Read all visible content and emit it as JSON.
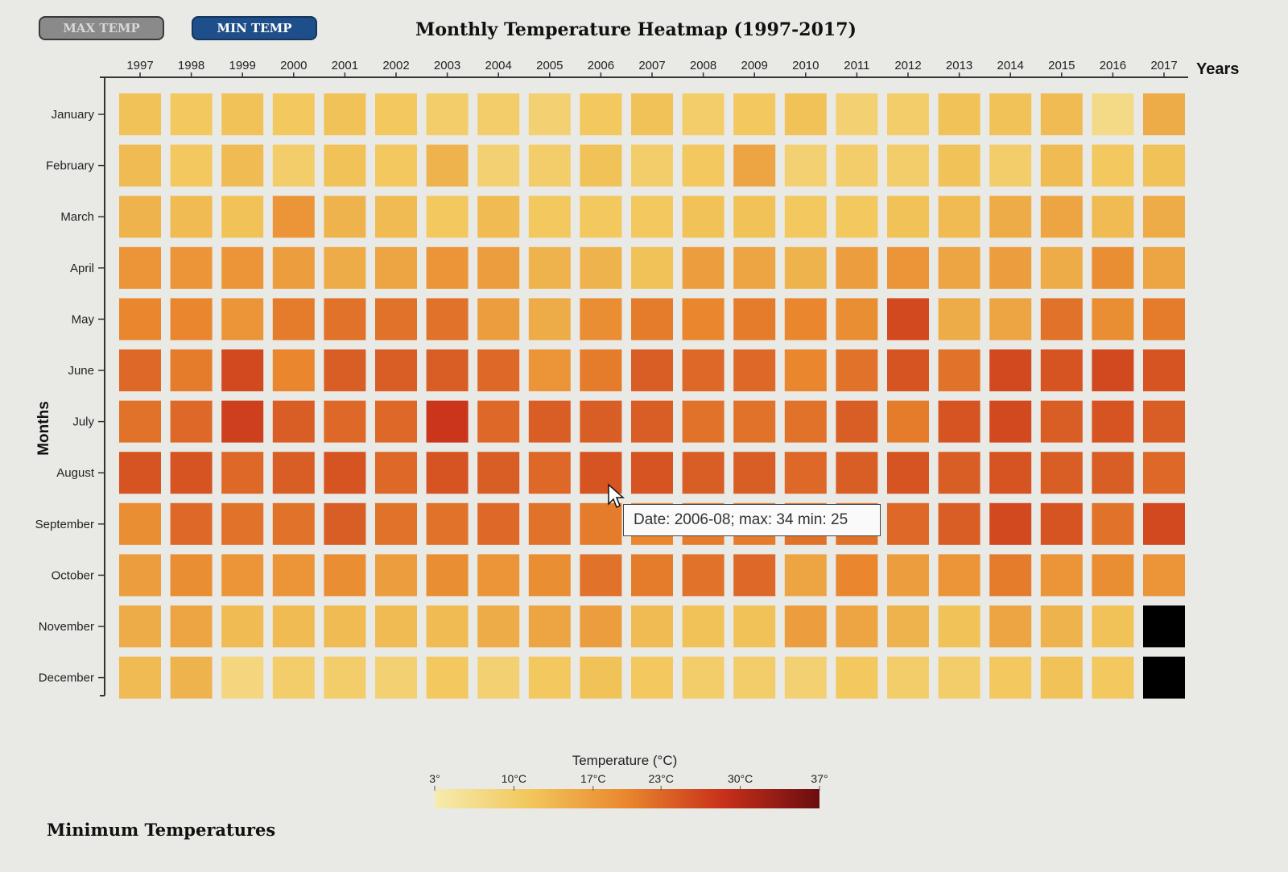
{
  "buttons": {
    "max_label": "MAX TEMP",
    "min_label": "MIN TEMP",
    "active": "min"
  },
  "title": "Monthly Temperature Heatmap (1997-2017)",
  "bottom_caption": "Minimum Temperatures",
  "tooltip": "Date: 2006-08; max: 34 min: 25",
  "colors": {
    "scale_low": "#f3e3a1",
    "scale_mid": "#e07a28",
    "scale_high": "#6e0f10",
    "missing": "#000000",
    "background": "#e9e9e6",
    "button_active": "#1f4f8a"
  },
  "chart_data": {
    "type": "heatmap",
    "title": "Monthly Temperature Heatmap (1997-2017)",
    "xlabel": "Years",
    "ylabel": "Months",
    "x": [
      "1997",
      "1998",
      "1999",
      "2000",
      "2001",
      "2002",
      "2003",
      "2004",
      "2005",
      "2006",
      "2007",
      "2008",
      "2009",
      "2010",
      "2011",
      "2012",
      "2013",
      "2014",
      "2015",
      "2016",
      "2017"
    ],
    "y": [
      "January",
      "February",
      "March",
      "April",
      "May",
      "June",
      "July",
      "August",
      "September",
      "October",
      "November",
      "December"
    ],
    "legend": {
      "title": "Temperature (°C)",
      "ticks": [
        "3°",
        "10°C",
        "17°C",
        "23°C",
        "30°C",
        "37°"
      ],
      "tick_values": [
        3,
        10,
        17,
        23,
        30,
        37
      ],
      "range": [
        3,
        37
      ]
    },
    "values_celsius": [
      [
        12,
        11,
        12,
        11,
        12,
        11,
        10,
        10,
        9,
        11,
        12,
        10,
        11,
        12,
        9,
        10,
        12,
        12,
        13,
        7,
        15
      ],
      [
        13,
        11,
        13,
        10,
        12,
        11,
        14,
        9,
        10,
        12,
        10,
        11,
        16,
        9,
        10,
        10,
        12,
        10,
        13,
        11,
        12
      ],
      [
        14,
        13,
        12,
        18,
        14,
        13,
        11,
        13,
        11,
        11,
        11,
        12,
        12,
        11,
        11,
        12,
        13,
        15,
        16,
        13,
        15
      ],
      [
        18,
        18,
        18,
        17,
        15,
        16,
        18,
        17,
        14,
        14,
        12,
        17,
        16,
        14,
        17,
        18,
        16,
        17,
        15,
        19,
        16
      ],
      [
        20,
        20,
        18,
        21,
        22,
        22,
        22,
        17,
        15,
        19,
        21,
        20,
        21,
        20,
        19,
        26,
        15,
        16,
        22,
        19,
        21
      ],
      [
        23,
        21,
        26,
        20,
        24,
        24,
        24,
        23,
        18,
        21,
        24,
        23,
        23,
        20,
        22,
        25,
        22,
        26,
        25,
        26,
        25
      ],
      [
        22,
        23,
        27,
        24,
        23,
        23,
        28,
        23,
        24,
        24,
        24,
        22,
        22,
        22,
        24,
        21,
        25,
        26,
        24,
        25,
        24
      ],
      [
        25,
        25,
        23,
        24,
        25,
        23,
        25,
        24,
        23,
        25,
        25,
        24,
        24,
        23,
        24,
        25,
        24,
        25,
        24,
        24,
        23
      ],
      [
        19,
        23,
        22,
        22,
        24,
        22,
        22,
        23,
        22,
        21,
        20,
        21,
        21,
        22,
        22,
        23,
        24,
        26,
        25,
        22,
        26
      ],
      [
        17,
        19,
        18,
        18,
        19,
        17,
        19,
        18,
        19,
        22,
        21,
        22,
        23,
        16,
        20,
        17,
        18,
        21,
        18,
        19,
        18
      ],
      [
        15,
        16,
        13,
        13,
        13,
        13,
        13,
        15,
        16,
        17,
        13,
        12,
        12,
        17,
        16,
        14,
        12,
        16,
        14,
        12,
        null
      ],
      [
        13,
        14,
        8,
        10,
        10,
        9,
        11,
        9,
        11,
        12,
        11,
        10,
        10,
        9,
        11,
        10,
        10,
        11,
        12,
        11,
        null
      ]
    ]
  }
}
